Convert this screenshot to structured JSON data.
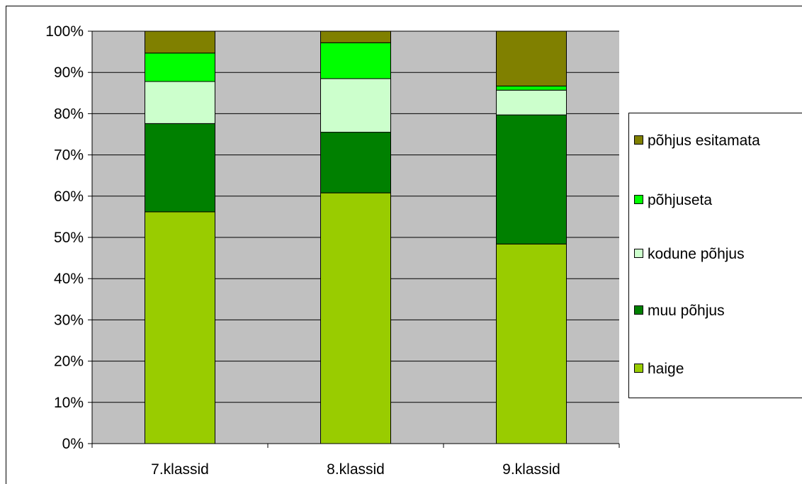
{
  "chart_data": {
    "type": "bar",
    "stacked": true,
    "percent": true,
    "categories": [
      "7.klassid",
      "8.klassid",
      "9.klassid"
    ],
    "series": [
      {
        "name": "haige",
        "color": "#99cc00",
        "values": [
          56.2,
          60.8,
          48.4
        ]
      },
      {
        "name": "muu põhjus",
        "color": "#008000",
        "values": [
          21.4,
          14.7,
          31.3
        ]
      },
      {
        "name": "kodune põhjus",
        "color": "#ccffcc",
        "values": [
          10.2,
          13.0,
          6.0
        ]
      },
      {
        "name": "põhjuseta",
        "color": "#00ff00",
        "values": [
          6.9,
          8.7,
          1.0
        ]
      },
      {
        "name": "põhjus esitamata",
        "color": "#808000",
        "values": [
          5.3,
          2.8,
          13.3
        ]
      }
    ],
    "ylim": [
      0,
      100
    ],
    "yticks": [
      "0%",
      "10%",
      "20%",
      "30%",
      "40%",
      "50%",
      "60%",
      "70%",
      "80%",
      "90%",
      "100%"
    ],
    "grid": true,
    "legend": "right",
    "plot_background": "#c0c0c0",
    "title": "",
    "xlabel": "",
    "ylabel": ""
  }
}
